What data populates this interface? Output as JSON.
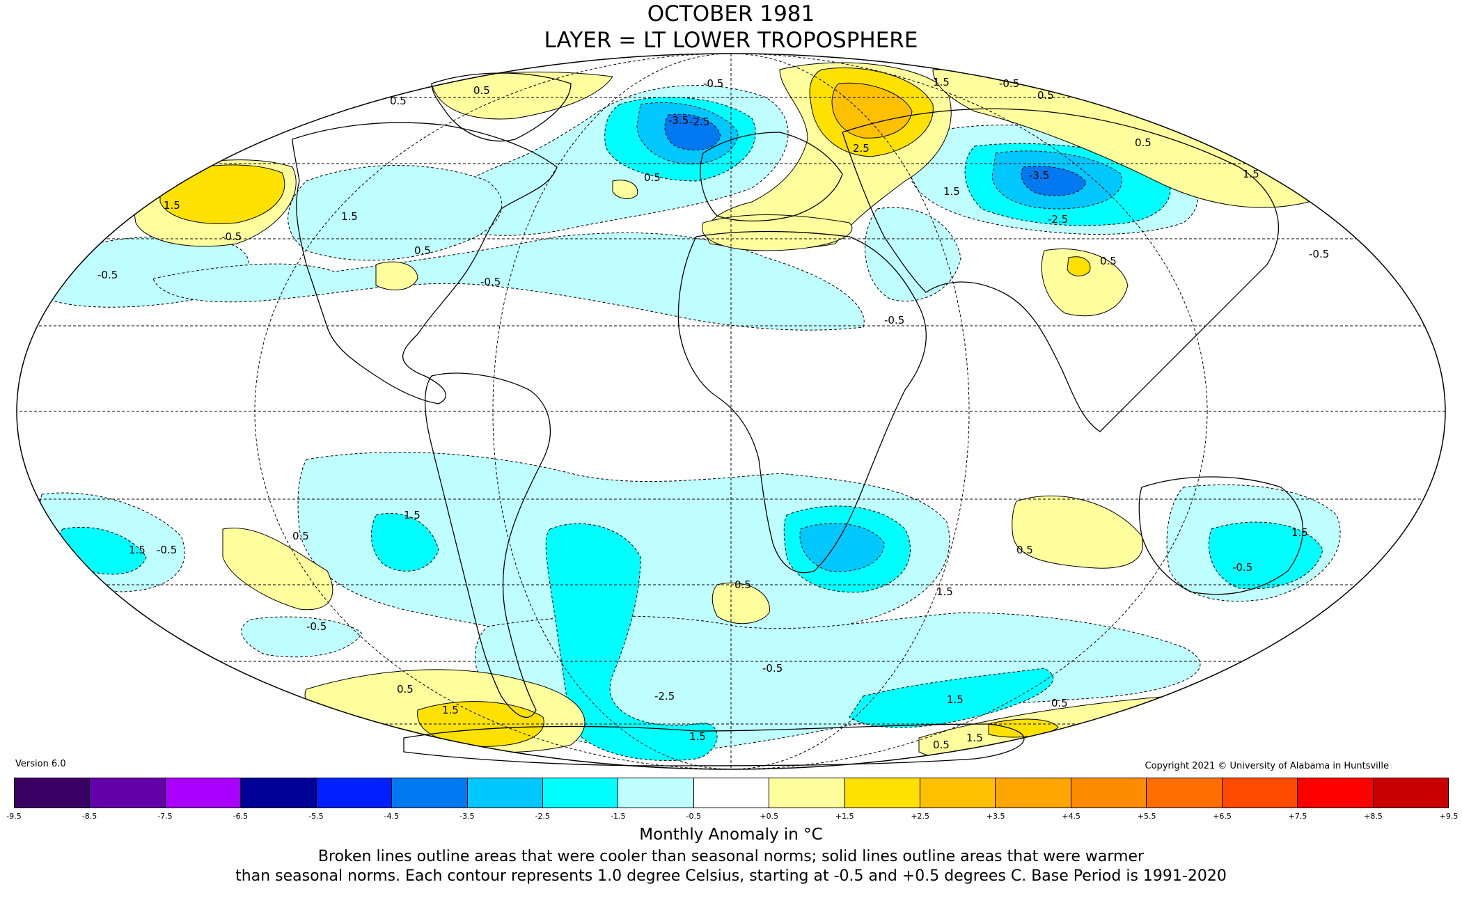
{
  "title": {
    "line1": "OCTOBER 1981",
    "line2": "LAYER = LT LOWER TROPOSPHERE"
  },
  "version": "Version 6.0",
  "copyright": "Copyright 2021 © University of Alabama in Huntsville",
  "colorbar": {
    "colors": [
      "#3a0064",
      "#6400aa",
      "#aa00ff",
      "#000096",
      "#0020ff",
      "#0078f0",
      "#00c8ff",
      "#00ffff",
      "#c0ffff",
      "#ffffff",
      "#ffff9e",
      "#ffe100",
      "#ffc000",
      "#ffa500",
      "#ff8c00",
      "#ff6e00",
      "#ff4b00",
      "#ff0000",
      "#c80000"
    ],
    "ticks": [
      "-9.5",
      "-8.5",
      "-7.5",
      "-6.5",
      "-5.5",
      "-4.5",
      "-3.5",
      "-2.5",
      "-1.5",
      "-0.5",
      "+0.5",
      "+1.5",
      "+2.5",
      "+3.5",
      "+4.5",
      "+5.5",
      "+6.5",
      "+7.5",
      "+8.5",
      "+9.5"
    ],
    "unit_label": "Monthly Anomaly in °C"
  },
  "caption": {
    "line1": "Broken lines outline areas that were cooler than seasonal norms; solid lines outline areas that were warmer",
    "line2": "than seasonal norms. Each contour represents 1.0 degree Celsius, starting at -0.5 and +0.5 degrees C. Base Period is 1991-2020"
  },
  "contour_labels": [
    "0.5",
    "-0.5",
    "-1.5",
    "-2.5",
    "-3.5",
    "1.5",
    "2.5"
  ],
  "colors": {
    "warm1": "#ffff9e",
    "warm2": "#ffe100",
    "warm3": "#ffc000",
    "cool1": "#c0ffff",
    "cool2": "#00ffff",
    "cool3": "#00c8ff",
    "cool4": "#0078f0"
  }
}
